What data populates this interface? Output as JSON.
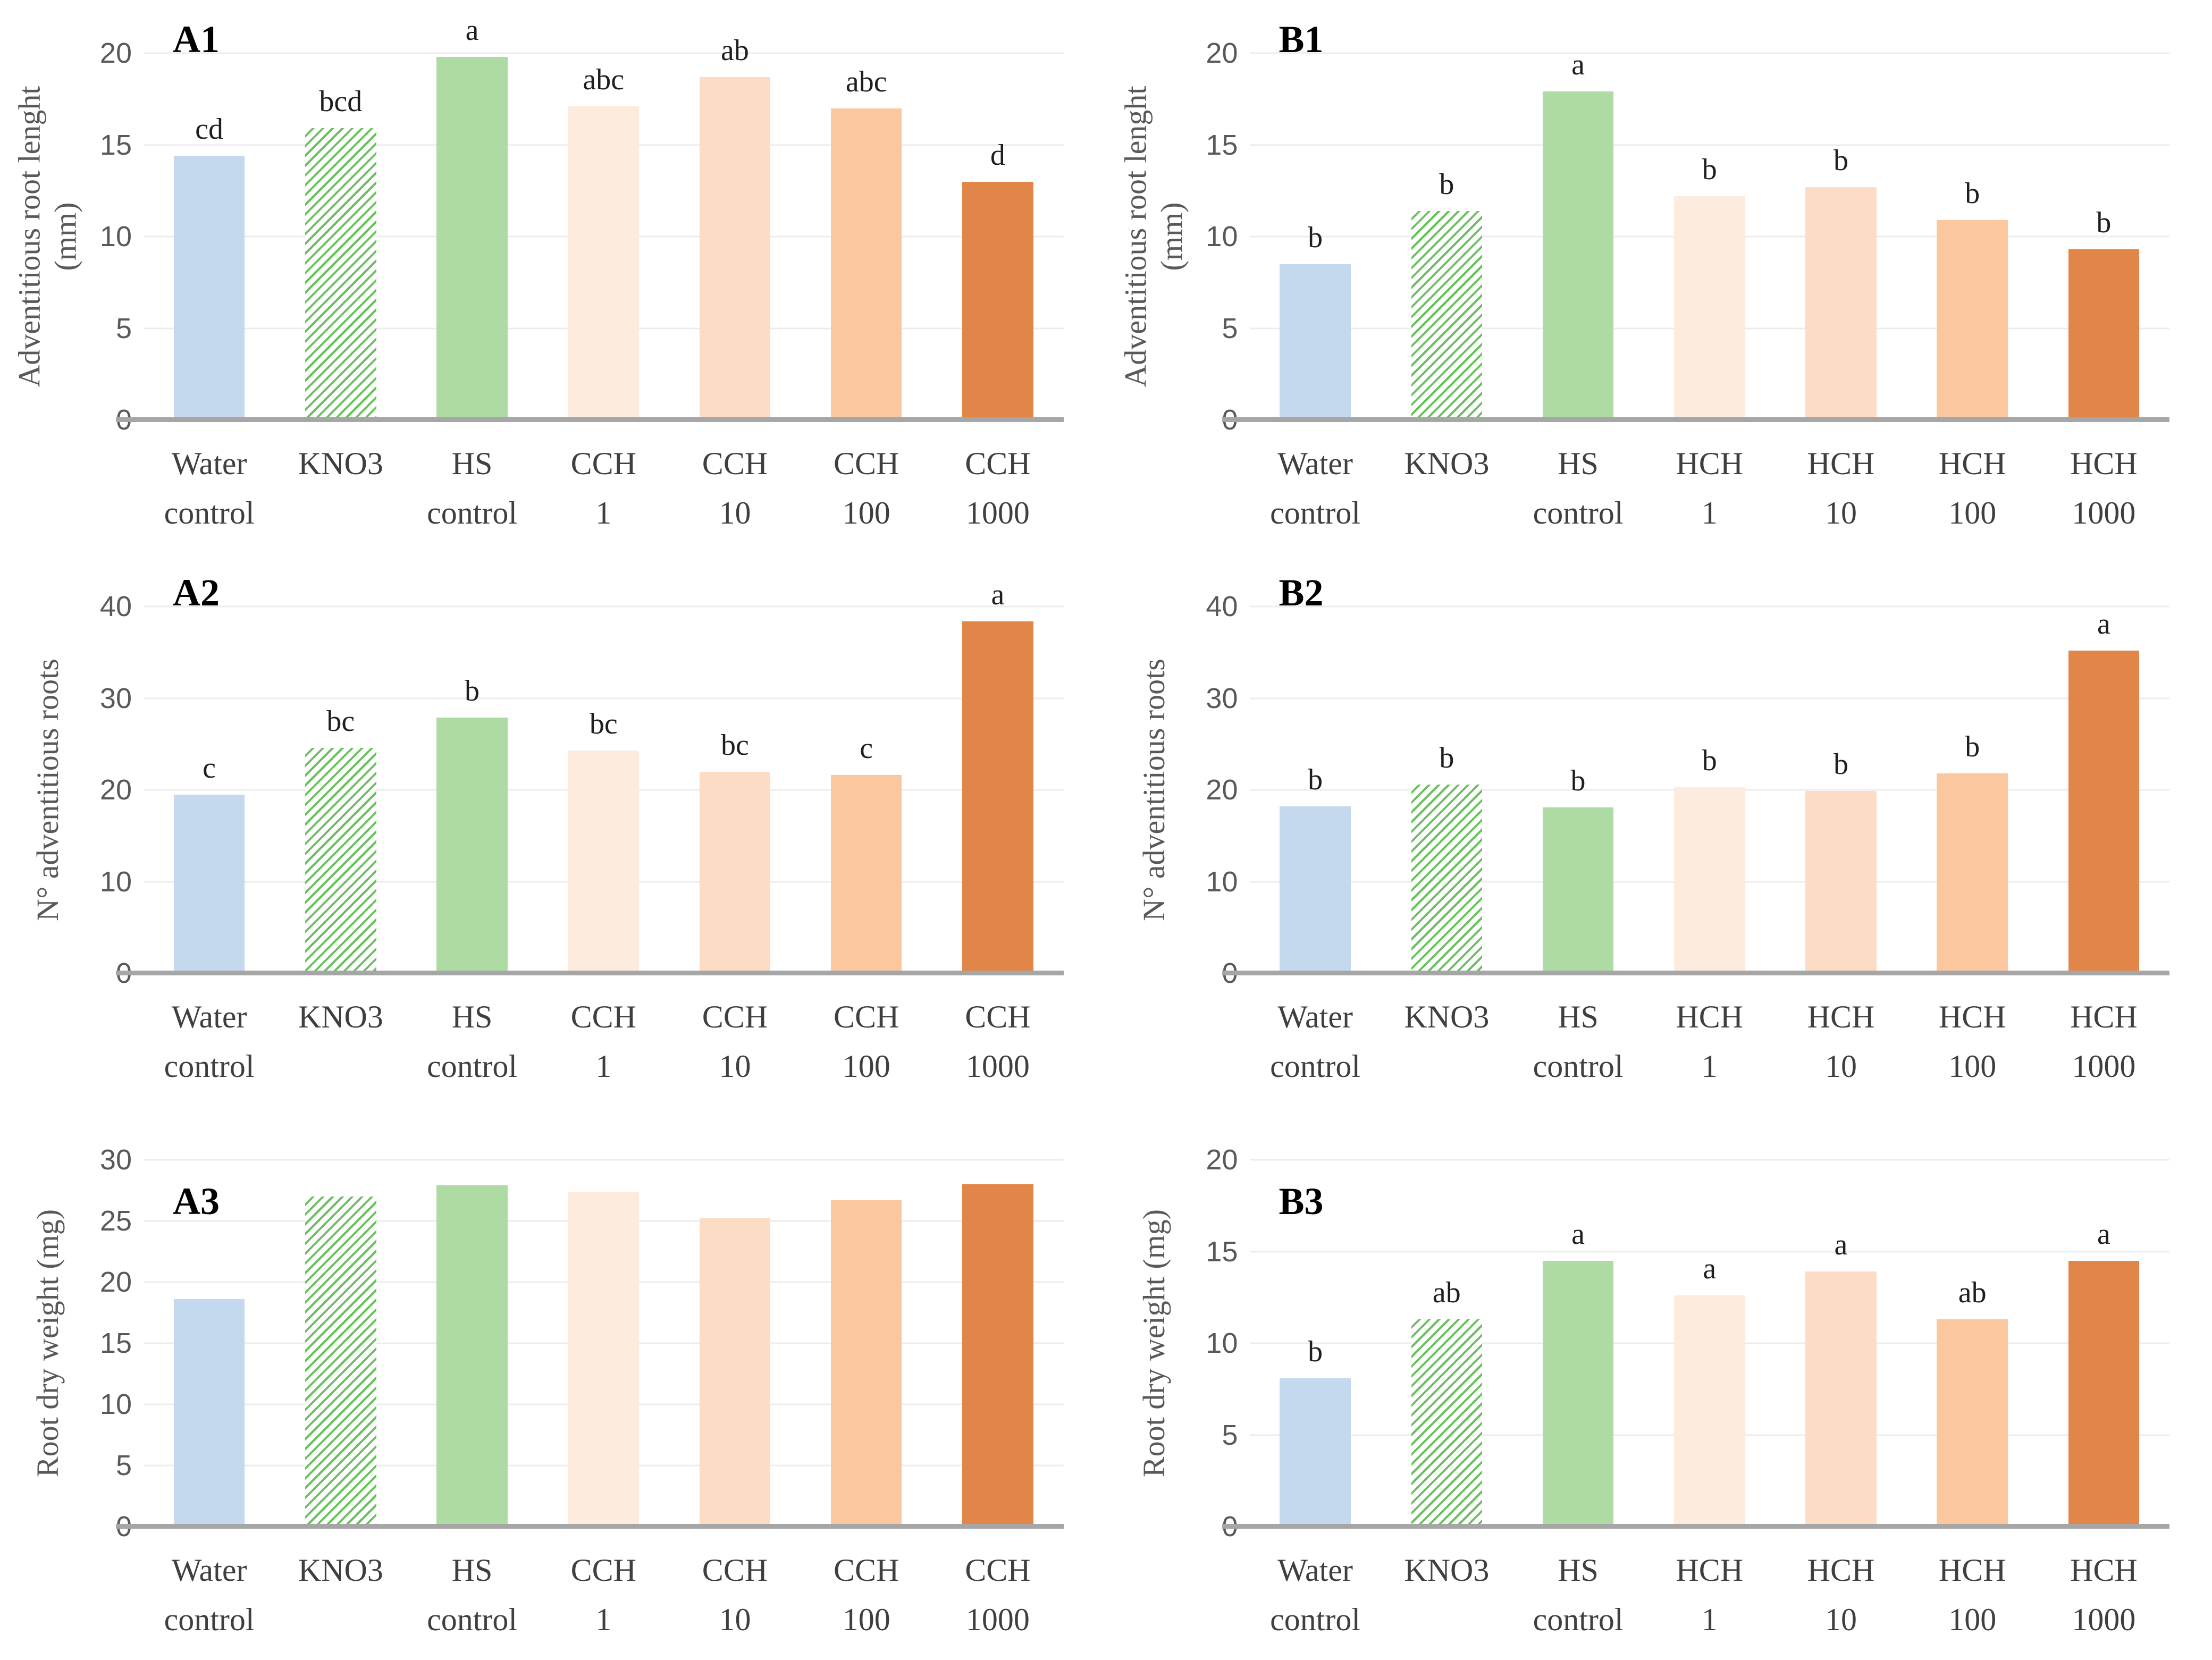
{
  "styles": {
    "bar_colors": {
      "water": "#c5d9ee",
      "kno3": "#6abf5e",
      "hs": "#aedaa3",
      "t1": "#fdebdd",
      "t10": "#fcdcc4",
      "t100": "#fbc79f",
      "t1000": "#e28549"
    },
    "gridline_color": "#ececec",
    "baseline_color": "#a6a6a6",
    "axis_text_color": "#595959",
    "category_text_color": "#3f3f3f"
  },
  "chart_data": [
    {
      "id": "A1",
      "type": "bar",
      "panel_label": "A1",
      "ylabel": "Adventitious root lenght (mm)",
      "ylim": [
        0,
        20
      ],
      "yticks": [
        0,
        5,
        10,
        15,
        20
      ],
      "categories": [
        [
          "Water",
          "control"
        ],
        [
          "KNO3"
        ],
        [
          "HS",
          "control"
        ],
        [
          "CCH",
          "1"
        ],
        [
          "CCH",
          "10"
        ],
        [
          "CCH",
          "100"
        ],
        [
          "CCH",
          "1000"
        ]
      ],
      "values": [
        14.4,
        15.9,
        19.8,
        17.1,
        18.7,
        17.0,
        13.0
      ],
      "sig_letters": [
        "cd",
        "bcd",
        "a",
        "abc",
        "ab",
        "abc",
        "d"
      ],
      "bar_styles": [
        "water",
        "kno3",
        "hs",
        "t1",
        "t10",
        "t100",
        "t1000"
      ]
    },
    {
      "id": "B1",
      "type": "bar",
      "panel_label": "B1",
      "ylabel": "Adventitious root lenght (mm)",
      "ylim": [
        0,
        20
      ],
      "yticks": [
        0,
        5,
        10,
        15,
        20
      ],
      "categories": [
        [
          "Water",
          "control"
        ],
        [
          "KNO3"
        ],
        [
          "HS",
          "control"
        ],
        [
          "HCH",
          "1"
        ],
        [
          "HCH",
          "10"
        ],
        [
          "HCH",
          "100"
        ],
        [
          "HCH",
          "1000"
        ]
      ],
      "values": [
        8.5,
        11.4,
        17.9,
        12.2,
        12.7,
        10.9,
        9.3
      ],
      "sig_letters": [
        "b",
        "b",
        "a",
        "b",
        "b",
        "b",
        "b"
      ],
      "bar_styles": [
        "water",
        "kno3",
        "hs",
        "t1",
        "t10",
        "t100",
        "t1000"
      ]
    },
    {
      "id": "A2",
      "type": "bar",
      "panel_label": "A2",
      "ylabel": "N° adventitious roots",
      "ylim": [
        0,
        40
      ],
      "yticks": [
        0,
        10,
        20,
        30,
        40
      ],
      "categories": [
        [
          "Water",
          "control"
        ],
        [
          "KNO3"
        ],
        [
          "HS",
          "control"
        ],
        [
          "CCH",
          "1"
        ],
        [
          "CCH",
          "10"
        ],
        [
          "CCH",
          "100"
        ],
        [
          "CCH",
          "1000"
        ]
      ],
      "values": [
        19.5,
        24.6,
        27.9,
        24.3,
        22.0,
        21.6,
        38.4
      ],
      "sig_letters": [
        "c",
        "bc",
        "b",
        "bc",
        "bc",
        "c",
        "a"
      ],
      "bar_styles": [
        "water",
        "kno3",
        "hs",
        "t1",
        "t10",
        "t100",
        "t1000"
      ]
    },
    {
      "id": "B2",
      "type": "bar",
      "panel_label": "B2",
      "ylabel": "N° adventitious roots",
      "ylim": [
        0,
        40
      ],
      "yticks": [
        0,
        10,
        20,
        30,
        40
      ],
      "categories": [
        [
          "Water",
          "control"
        ],
        [
          "KNO3"
        ],
        [
          "HS",
          "control"
        ],
        [
          "HCH",
          "1"
        ],
        [
          "HCH",
          "10"
        ],
        [
          "HCH",
          "100"
        ],
        [
          "HCH",
          "1000"
        ]
      ],
      "values": [
        18.2,
        20.6,
        18.1,
        20.3,
        19.9,
        21.8,
        35.2
      ],
      "sig_letters": [
        "b",
        "b",
        "b",
        "b",
        "b",
        "b",
        "a"
      ],
      "bar_styles": [
        "water",
        "kno3",
        "hs",
        "t1",
        "t10",
        "t100",
        "t1000"
      ]
    },
    {
      "id": "A3",
      "type": "bar",
      "panel_label": "A3",
      "ylabel": "Root dry weight (mg)",
      "ylim": [
        0,
        30
      ],
      "yticks": [
        0,
        5,
        10,
        15,
        20,
        25,
        30
      ],
      "categories": [
        [
          "Water",
          "control"
        ],
        [
          "KNO3"
        ],
        [
          "HS",
          "control"
        ],
        [
          "CCH",
          "1"
        ],
        [
          "CCH",
          "10"
        ],
        [
          "CCH",
          "100"
        ],
        [
          "CCH",
          "1000"
        ]
      ],
      "values": [
        18.6,
        27.0,
        27.9,
        27.4,
        25.2,
        26.7,
        28.0
      ],
      "sig_letters": [
        "",
        "",
        "",
        "",
        "",
        "",
        ""
      ],
      "bar_styles": [
        "water",
        "kno3",
        "hs",
        "t1",
        "t10",
        "t100",
        "t1000"
      ]
    },
    {
      "id": "B3",
      "type": "bar",
      "panel_label": "B3",
      "ylabel": "Root dry weight (mg)",
      "ylim": [
        0,
        20
      ],
      "yticks": [
        0,
        5,
        10,
        15,
        20
      ],
      "categories": [
        [
          "Water",
          "control"
        ],
        [
          "KNO3"
        ],
        [
          "HS",
          "control"
        ],
        [
          "HCH",
          "1"
        ],
        [
          "HCH",
          "10"
        ],
        [
          "HCH",
          "100"
        ],
        [
          "HCH",
          "1000"
        ]
      ],
      "values": [
        8.1,
        11.3,
        14.5,
        12.6,
        13.9,
        11.3,
        14.5
      ],
      "sig_letters": [
        "b",
        "ab",
        "a",
        "a",
        "a",
        "ab",
        "a"
      ],
      "bar_styles": [
        "water",
        "kno3",
        "hs",
        "t1",
        "t10",
        "t100",
        "t1000"
      ]
    }
  ]
}
